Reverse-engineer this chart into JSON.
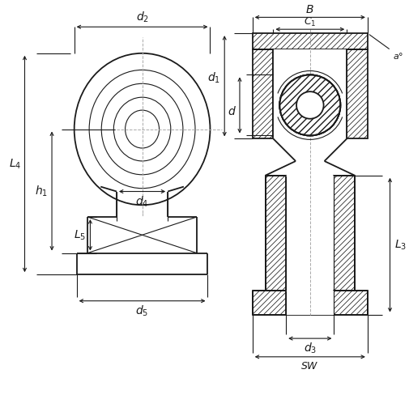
{
  "bg_color": "#ffffff",
  "line_color": "#1a1a1a",
  "fig_width": 5.05,
  "fig_height": 4.88,
  "dpi": 100
}
